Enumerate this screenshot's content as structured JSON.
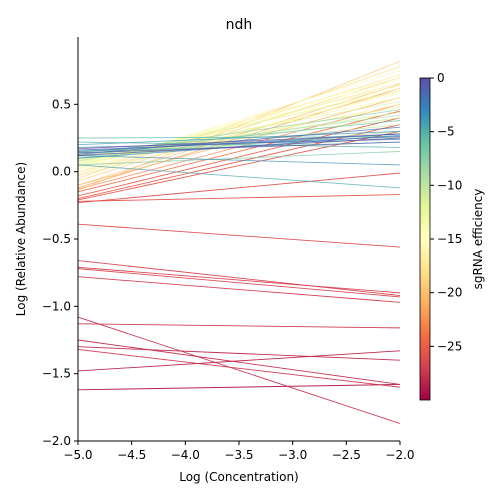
{
  "chart_data": {
    "type": "line",
    "title": "ndh",
    "xlabel": "Log (Concentration)",
    "ylabel": "Log (Relative Abundance)",
    "xlim": [
      -5.0,
      -2.0
    ],
    "ylim": [
      -2.0,
      1.0
    ],
    "xticks": [
      "-5.0",
      "-4.5",
      "-4.0",
      "-3.5",
      "-3.0",
      "-2.5",
      "-2.0"
    ],
    "yticks": [
      "-2.0",
      "-1.5",
      "-1.0",
      "-0.5",
      "0.0",
      "0.5"
    ],
    "x": [
      -5.0,
      -2.0
    ],
    "grid": false,
    "colorbar": {
      "label": "sgRNA efficiency",
      "range": [
        -30,
        0
      ],
      "ticks": [
        "0",
        "-5",
        "-10",
        "-15",
        "-20",
        "-25"
      ],
      "colormap": "Spectral"
    },
    "series": [
      {
        "efficiency": -29.0,
        "values": [
          -1.62,
          -1.58
        ]
      },
      {
        "efficiency": -28.5,
        "values": [
          -1.48,
          -1.33
        ]
      },
      {
        "efficiency": -28.3,
        "values": [
          -1.3,
          -1.4
        ]
      },
      {
        "efficiency": -28.0,
        "values": [
          -1.25,
          -1.58
        ]
      },
      {
        "efficiency": -27.8,
        "values": [
          -1.08,
          -1.87
        ]
      },
      {
        "efficiency": -27.6,
        "values": [
          -1.13,
          -1.16
        ]
      },
      {
        "efficiency": -27.5,
        "values": [
          -1.32,
          -1.6
        ]
      },
      {
        "efficiency": -27.2,
        "values": [
          -0.78,
          -0.97
        ]
      },
      {
        "efficiency": -27.0,
        "values": [
          -0.71,
          -0.9
        ]
      },
      {
        "efficiency": -26.8,
        "values": [
          -0.66,
          -0.92
        ]
      },
      {
        "efficiency": -26.5,
        "values": [
          -0.72,
          -0.93
        ]
      },
      {
        "efficiency": -26.2,
        "values": [
          -0.39,
          -0.56
        ]
      },
      {
        "efficiency": -26.0,
        "values": [
          -0.23,
          -0.01
        ]
      },
      {
        "efficiency": -25.8,
        "values": [
          -0.22,
          -0.17
        ]
      },
      {
        "efficiency": -25.5,
        "values": [
          -0.21,
          0.3
        ]
      },
      {
        "efficiency": -25.2,
        "values": [
          -0.2,
          0.35
        ]
      },
      {
        "efficiency": -25.0,
        "values": [
          -0.18,
          0.4
        ]
      },
      {
        "efficiency": -24.0,
        "values": [
          -0.15,
          0.45
        ]
      },
      {
        "efficiency": -23.0,
        "values": [
          -0.13,
          0.5
        ]
      },
      {
        "efficiency": -22.0,
        "values": [
          -0.12,
          0.62
        ]
      },
      {
        "efficiency": -21.0,
        "values": [
          -0.1,
          0.55
        ]
      },
      {
        "efficiency": -20.0,
        "values": [
          -0.1,
          0.65
        ]
      },
      {
        "efficiency": -19.5,
        "values": [
          -0.14,
          0.82
        ]
      },
      {
        "efficiency": -19.0,
        "values": [
          -0.07,
          0.7
        ]
      },
      {
        "efficiency": -18.5,
        "values": [
          -0.05,
          0.78
        ]
      },
      {
        "efficiency": -18.0,
        "values": [
          -0.03,
          0.6
        ]
      },
      {
        "efficiency": -17.5,
        "values": [
          -0.02,
          0.72
        ]
      },
      {
        "efficiency": -17.0,
        "values": [
          0.0,
          0.66
        ]
      },
      {
        "efficiency": -16.5,
        "values": [
          0.0,
          0.5
        ]
      },
      {
        "efficiency": -16.0,
        "values": [
          0.02,
          0.75
        ]
      },
      {
        "efficiency": -15.5,
        "values": [
          0.02,
          0.58
        ]
      },
      {
        "efficiency": -15.0,
        "values": [
          0.03,
          0.68
        ]
      },
      {
        "efficiency": -14.5,
        "values": [
          0.04,
          0.62
        ]
      },
      {
        "efficiency": -14.0,
        "values": [
          0.04,
          0.7
        ]
      },
      {
        "efficiency": -13.5,
        "values": [
          0.05,
          0.55
        ]
      },
      {
        "efficiency": -13.0,
        "values": [
          0.06,
          0.64
        ]
      },
      {
        "efficiency": -12.5,
        "values": [
          0.06,
          0.48
        ]
      },
      {
        "efficiency": -12.0,
        "values": [
          0.07,
          0.6
        ]
      },
      {
        "efficiency": -11.5,
        "values": [
          0.08,
          0.52
        ]
      },
      {
        "efficiency": -11.0,
        "values": [
          0.08,
          0.44
        ]
      },
      {
        "efficiency": -10.5,
        "values": [
          0.09,
          0.4
        ]
      },
      {
        "efficiency": -10.0,
        "values": [
          0.1,
          0.35
        ]
      },
      {
        "efficiency": -9.5,
        "values": [
          0.1,
          0.3
        ]
      },
      {
        "efficiency": -9.0,
        "values": [
          0.11,
          0.42
        ]
      },
      {
        "efficiency": -8.5,
        "values": [
          0.12,
          0.25
        ]
      },
      {
        "efficiency": -8.0,
        "values": [
          0.12,
          0.46
        ]
      },
      {
        "efficiency": -7.5,
        "values": [
          0.13,
          0.28
        ]
      },
      {
        "efficiency": -7.0,
        "values": [
          0.05,
          0.15
        ]
      },
      {
        "efficiency": -6.5,
        "values": [
          0.14,
          0.38
        ]
      },
      {
        "efficiency": -6.0,
        "values": [
          0.15,
          0.22
        ]
      },
      {
        "efficiency": -5.5,
        "values": [
          0.25,
          0.26
        ]
      },
      {
        "efficiency": -5.0,
        "values": [
          0.22,
          0.18
        ]
      },
      {
        "efficiency": -4.5,
        "values": [
          0.05,
          -0.12
        ]
      },
      {
        "efficiency": -4.0,
        "values": [
          0.2,
          0.3
        ]
      },
      {
        "efficiency": -3.5,
        "values": [
          0.12,
          0.05
        ]
      },
      {
        "efficiency": -3.0,
        "values": [
          0.1,
          0.27
        ]
      },
      {
        "efficiency": -2.5,
        "values": [
          0.15,
          0.28
        ]
      },
      {
        "efficiency": -2.0,
        "values": [
          0.18,
          0.24
        ]
      },
      {
        "efficiency": -1.5,
        "values": [
          0.13,
          0.33
        ]
      },
      {
        "efficiency": -1.0,
        "values": [
          0.16,
          0.26
        ]
      },
      {
        "efficiency": -0.5,
        "values": [
          0.14,
          0.22
        ]
      },
      {
        "efficiency": -0.2,
        "values": [
          0.12,
          0.25
        ]
      },
      {
        "efficiency": 0.0,
        "values": [
          0.17,
          0.28
        ]
      }
    ]
  }
}
